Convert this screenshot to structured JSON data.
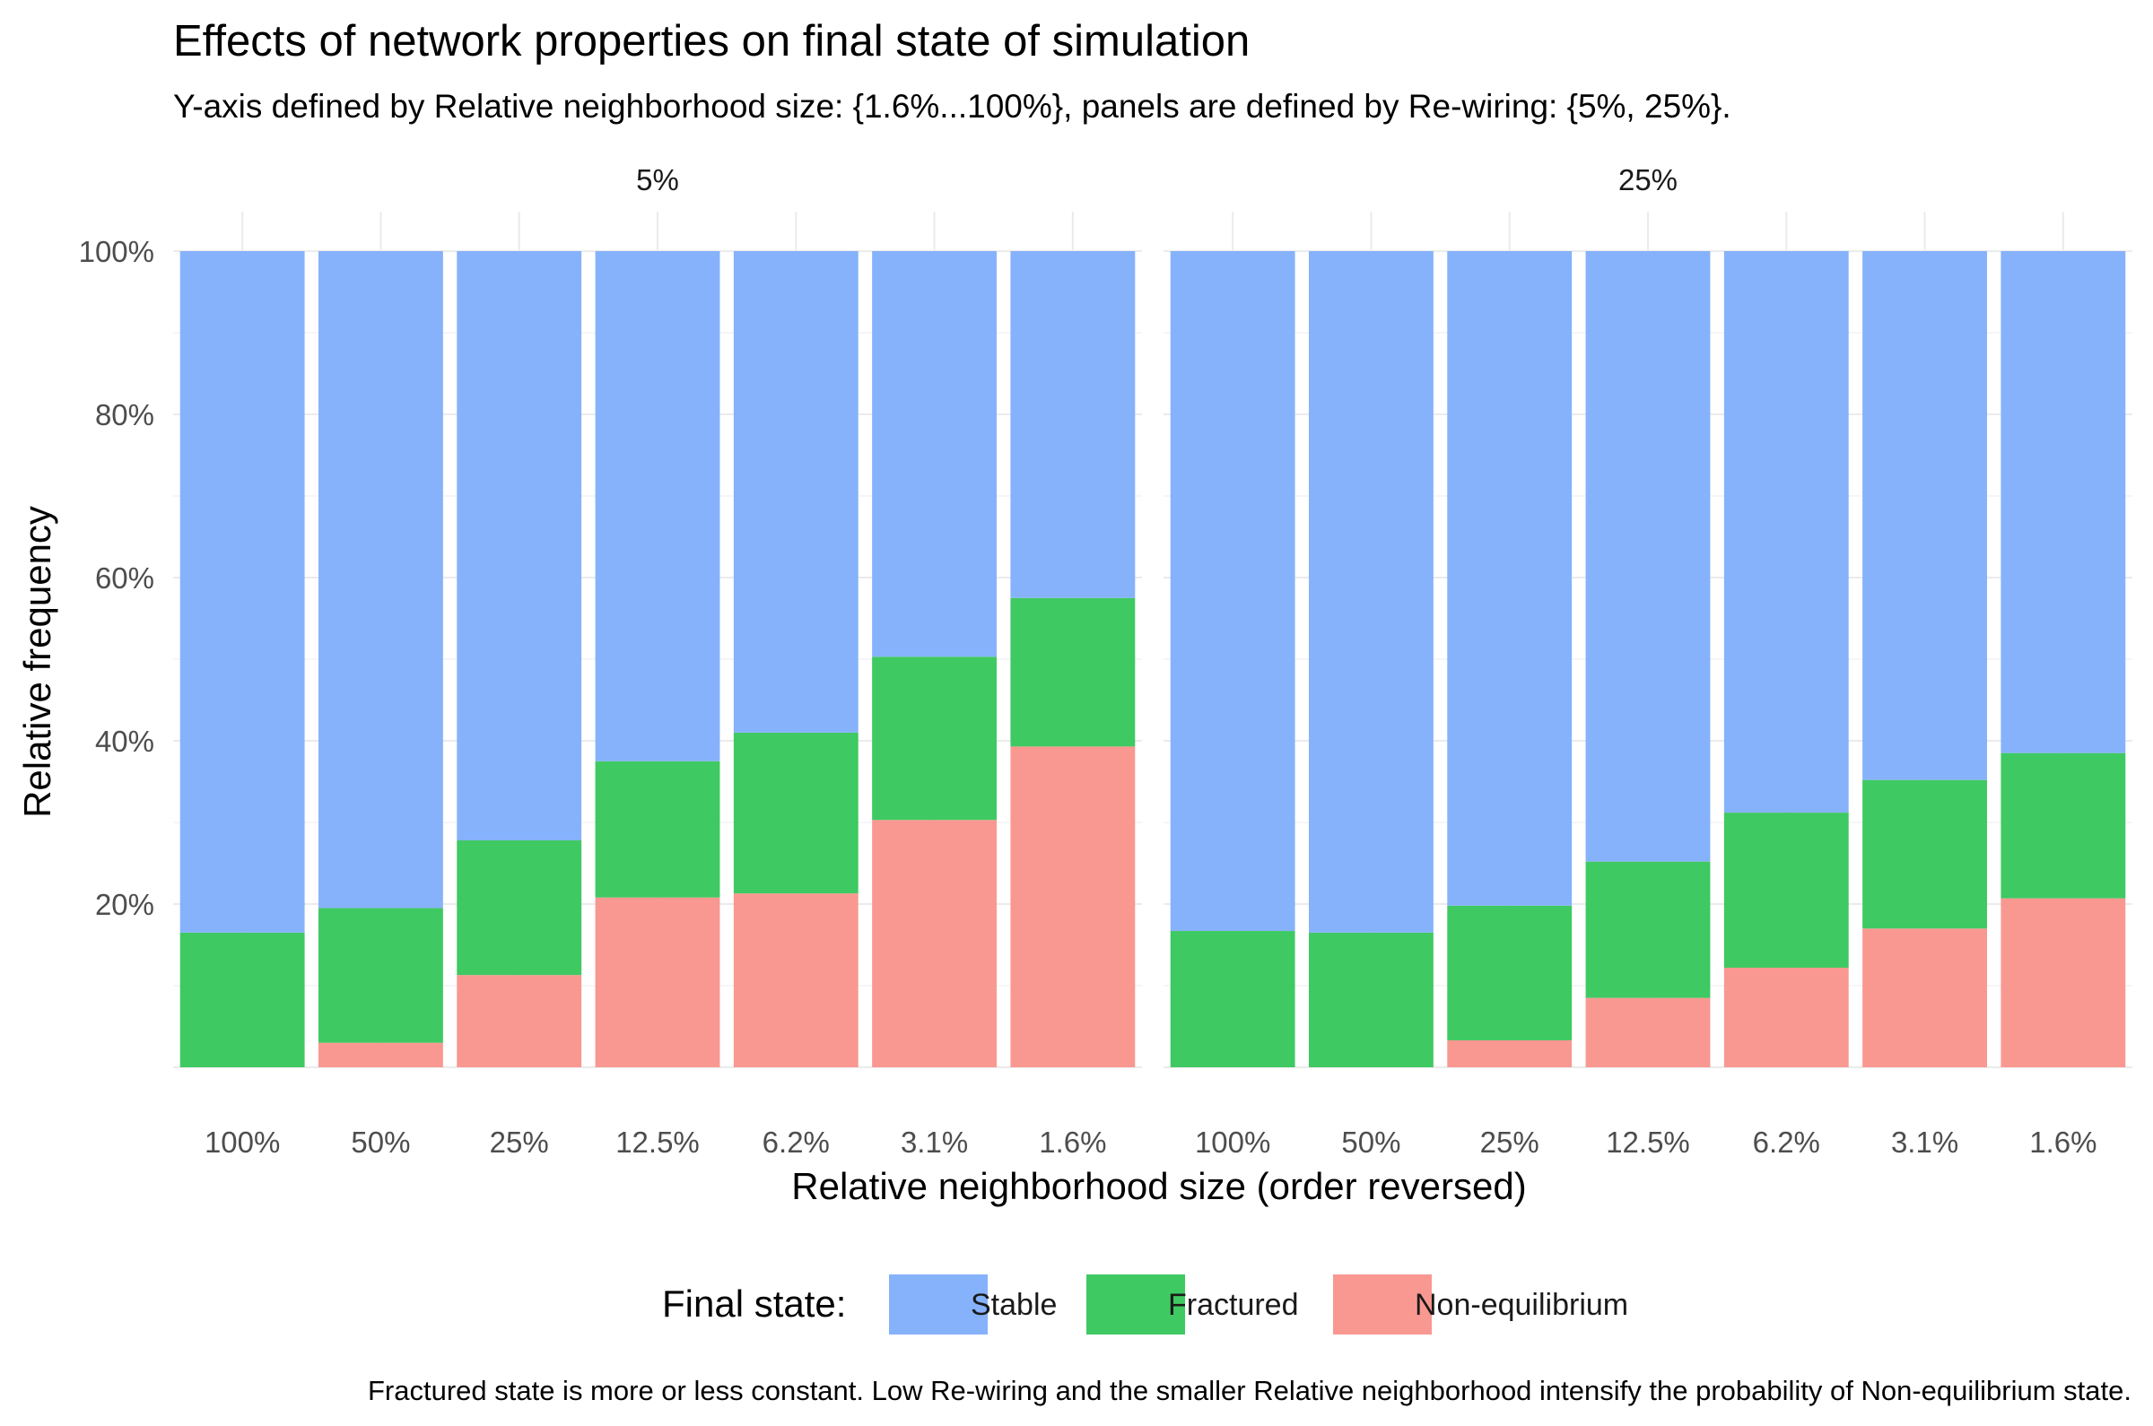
{
  "chart_data": {
    "type": "bar",
    "stacked": true,
    "title": "Effects of network properties on final state of simulation",
    "subtitle": "Y-axis defined by Relative neighborhood size: {1.6%...100%}, panels are defined by Re-wiring: {5%, 25%}.",
    "xlabel": "Relative neighborhood size (order reversed)",
    "ylabel": "Relative frequency",
    "caption": "Fractured state is more or less constant. Low Re-wiring and the smaller Relative neighborhood intensify the probability of Non-equilibrium state.",
    "ylim": [
      0,
      1
    ],
    "yticks": [
      0.2,
      0.4,
      0.6,
      0.8,
      1.0
    ],
    "ytick_labels": [
      "20%",
      "40%",
      "60%",
      "80%",
      "100%"
    ],
    "grid": true,
    "categories": [
      "100%",
      "50%",
      "25%",
      "12.5%",
      "6.2%",
      "3.1%",
      "1.6%"
    ],
    "legend": {
      "title": "Final state:",
      "position": "bottom",
      "entries": [
        "Stable",
        "Fractured",
        "Non-equilibrium"
      ]
    },
    "colors": {
      "Stable": "#86b2fb",
      "Fractured": "#3fc962",
      "Non-equilibrium": "#f99891"
    },
    "panels": [
      {
        "label": "5%",
        "series": [
          {
            "name": "Non-equilibrium",
            "values": [
              0.0,
              0.03,
              0.113,
              0.208,
              0.213,
              0.303,
              0.393
            ]
          },
          {
            "name": "Fractured",
            "values": [
              0.165,
              0.165,
              0.165,
              0.167,
              0.197,
              0.2,
              0.182
            ]
          },
          {
            "name": "Stable",
            "values": [
              0.835,
              0.805,
              0.722,
              0.625,
              0.59,
              0.497,
              0.425
            ]
          }
        ]
      },
      {
        "label": "25%",
        "series": [
          {
            "name": "Non-equilibrium",
            "values": [
              0.0,
              0.0,
              0.033,
              0.085,
              0.122,
              0.17,
              0.207
            ]
          },
          {
            "name": "Fractured",
            "values": [
              0.167,
              0.165,
              0.165,
              0.167,
              0.19,
              0.182,
              0.178
            ]
          },
          {
            "name": "Stable",
            "values": [
              0.833,
              0.835,
              0.802,
              0.748,
              0.688,
              0.648,
              0.615
            ]
          }
        ]
      }
    ]
  }
}
